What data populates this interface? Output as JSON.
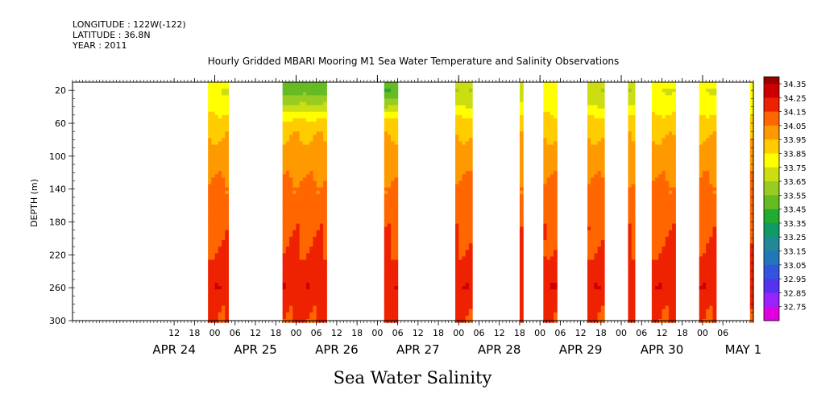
{
  "header": {
    "longitude": "LONGITUDE : 122W(-122)",
    "latitude": "LATITUDE : 36.8N",
    "year": "YEAR : 2011"
  },
  "title": "Hourly Gridded MBARI Mooring M1 Sea Water Temperature and Salinity Observations",
  "xlabel": "Sea Water Salinity",
  "chart_data": {
    "type": "heatmap",
    "title": "Hourly Gridded MBARI Mooring M1 Sea Water Temperature and Salinity Observations",
    "xlabel": "Sea Water Salinity",
    "ylabel": "DEPTH (m)",
    "x_axis": {
      "start": "2011-04-23T06:00",
      "end": "2011-05-01T15:00",
      "hour_ticks": [
        {
          "t": "2011-04-24T12:00",
          "label": "12"
        },
        {
          "t": "2011-04-24T18:00",
          "label": "18"
        },
        {
          "t": "2011-04-25T00:00",
          "label": "00"
        },
        {
          "t": "2011-04-25T06:00",
          "label": "06"
        },
        {
          "t": "2011-04-25T12:00",
          "label": "12"
        },
        {
          "t": "2011-04-25T18:00",
          "label": "18"
        },
        {
          "t": "2011-04-26T00:00",
          "label": "00"
        },
        {
          "t": "2011-04-26T06:00",
          "label": "06"
        },
        {
          "t": "2011-04-26T12:00",
          "label": "12"
        },
        {
          "t": "2011-04-26T18:00",
          "label": "18"
        },
        {
          "t": "2011-04-27T00:00",
          "label": "00"
        },
        {
          "t": "2011-04-27T06:00",
          "label": "06"
        },
        {
          "t": "2011-04-27T12:00",
          "label": "12"
        },
        {
          "t": "2011-04-27T18:00",
          "label": "18"
        },
        {
          "t": "2011-04-28T00:00",
          "label": "00"
        },
        {
          "t": "2011-04-28T06:00",
          "label": "06"
        },
        {
          "t": "2011-04-28T12:00",
          "label": "12"
        },
        {
          "t": "2011-04-28T18:00",
          "label": "18"
        },
        {
          "t": "2011-04-29T00:00",
          "label": "00"
        },
        {
          "t": "2011-04-29T06:00",
          "label": "06"
        },
        {
          "t": "2011-04-29T12:00",
          "label": "12"
        },
        {
          "t": "2011-04-29T18:00",
          "label": "18"
        },
        {
          "t": "2011-04-30T00:00",
          "label": "00"
        },
        {
          "t": "2011-04-30T06:00",
          "label": "06"
        },
        {
          "t": "2011-04-30T12:00",
          "label": "12"
        },
        {
          "t": "2011-04-30T18:00",
          "label": "18"
        },
        {
          "t": "2011-05-01T00:00",
          "label": "00"
        },
        {
          "t": "2011-05-01T06:00",
          "label": "06"
        }
      ],
      "day_labels": [
        {
          "t": "2011-04-24T12:00",
          "label": "APR 24"
        },
        {
          "t": "2011-04-25T12:00",
          "label": "APR 25"
        },
        {
          "t": "2011-04-26T12:00",
          "label": "APR 26"
        },
        {
          "t": "2011-04-27T12:00",
          "label": "APR 27"
        },
        {
          "t": "2011-04-28T12:00",
          "label": "APR 28"
        },
        {
          "t": "2011-04-29T12:00",
          "label": "APR 29"
        },
        {
          "t": "2011-04-30T12:00",
          "label": "APR 30"
        },
        {
          "t": "2011-05-01T12:00",
          "label": "MAY  1"
        }
      ]
    },
    "y_axis": {
      "label": "DEPTH (m)",
      "range": [
        10,
        300
      ],
      "reversed": true,
      "ticks": [
        20,
        60,
        100,
        140,
        180,
        220,
        260,
        300
      ]
    },
    "data_blocks": [
      {
        "start": "2011-04-24T22:00",
        "end": "2011-04-25T04:00",
        "surface": 33.8
      },
      {
        "start": "2011-04-25T20:00",
        "end": "2011-04-26T09:00",
        "surface": 33.55
      },
      {
        "start": "2011-04-27T02:00",
        "end": "2011-04-27T06:00",
        "surface": 33.5
      },
      {
        "start": "2011-04-27T23:00",
        "end": "2011-04-28T04:00",
        "surface": 33.7
      },
      {
        "start": "2011-04-28T18:00",
        "end": "2011-04-28T19:00",
        "surface": 33.75
      },
      {
        "start": "2011-04-29T01:00",
        "end": "2011-04-29T05:00",
        "surface": 33.8
      },
      {
        "start": "2011-04-29T14:00",
        "end": "2011-04-29T19:00",
        "surface": 33.7
      },
      {
        "start": "2011-04-30T02:00",
        "end": "2011-04-30T04:00",
        "surface": 33.7
      },
      {
        "start": "2011-04-30T09:00",
        "end": "2011-04-30T16:00",
        "surface": 33.8
      },
      {
        "start": "2011-04-30T23:00",
        "end": "2011-05-01T04:00",
        "surface": 33.8
      },
      {
        "start": "2011-05-01T14:00",
        "end": "2011-05-01T15:00",
        "surface": 33.85
      }
    ],
    "depth_profile": [
      {
        "depth": 20,
        "salinity": 33.75
      },
      {
        "depth": 40,
        "salinity": 33.8
      },
      {
        "depth": 55,
        "salinity": 33.88
      },
      {
        "depth": 70,
        "salinity": 33.93
      },
      {
        "depth": 100,
        "salinity": 34.0
      },
      {
        "depth": 140,
        "salinity": 34.07
      },
      {
        "depth": 180,
        "salinity": 34.12
      },
      {
        "depth": 210,
        "salinity": 34.15
      },
      {
        "depth": 240,
        "salinity": 34.2
      },
      {
        "depth": 260,
        "salinity": 34.23
      },
      {
        "depth": 280,
        "salinity": 34.18
      },
      {
        "depth": 300,
        "salinity": 34.16
      }
    ],
    "colorbar": {
      "levels": [
        32.75,
        32.85,
        32.95,
        33.05,
        33.15,
        33.25,
        33.35,
        33.45,
        33.55,
        33.65,
        33.75,
        33.85,
        33.95,
        34.05,
        34.15,
        34.25,
        34.35
      ],
      "labels": [
        "34.35",
        "34.25",
        "34.15",
        "34.05",
        "33.95",
        "33.85",
        "33.75",
        "33.65",
        "33.55",
        "33.45",
        "33.35",
        "33.25",
        "33.15",
        "33.05",
        "32.95",
        "32.85",
        "32.75"
      ],
      "colors": [
        "#e000e0",
        "#9922ff",
        "#5533ee",
        "#3355dd",
        "#2277bb",
        "#228899",
        "#119966",
        "#22aa33",
        "#66bb22",
        "#99cc22",
        "#ccdd11",
        "#ffff00",
        "#ffcc00",
        "#ff9900",
        "#ff6600",
        "#ee2200",
        "#cc0000",
        "#990000"
      ]
    }
  }
}
